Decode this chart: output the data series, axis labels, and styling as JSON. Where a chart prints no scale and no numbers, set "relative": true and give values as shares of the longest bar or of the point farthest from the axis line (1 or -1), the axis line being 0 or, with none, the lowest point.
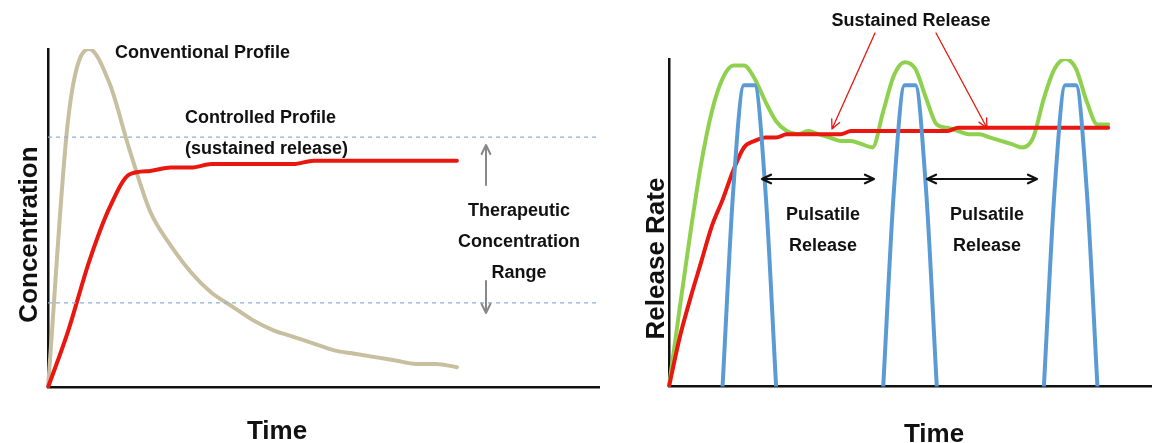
{
  "chart_data": [
    {
      "type": "line",
      "relative": true,
      "xlabel": "Time",
      "ylabel": "Concentration",
      "marker": "none",
      "categories": [
        null,
        null,
        null,
        null,
        null,
        null,
        null,
        null,
        null,
        null,
        null,
        null,
        null,
        null,
        null,
        null,
        null,
        null,
        null,
        null,
        null,
        null,
        null,
        null,
        null,
        null,
        null,
        null
      ],
      "series": [
        {
          "name": "Conventional Profile",
          "color": "#c8bfa0",
          "values": [
            0,
            0.8,
            1,
            0.9,
            0.7,
            0.52,
            0.42,
            0.34,
            0.28,
            0.24,
            0.2,
            0.17,
            0.15,
            0.13,
            0.11,
            0.1,
            0.09,
            0.08,
            0.07,
            0.07,
            0.06,
            null,
            null,
            null,
            null,
            null,
            null,
            null
          ]
        },
        {
          "name": "Controlled Profile (sustained release)",
          "color": "#e8170f",
          "values": [
            0,
            0.17,
            0.37,
            0.53,
            0.63,
            0.64,
            0.65,
            0.65,
            0.66,
            0.66,
            0.66,
            0.66,
            0.66,
            0.67,
            0.67,
            0.67,
            0.67,
            0.67,
            0.67,
            0.67,
            0.67,
            null,
            null,
            null,
            null,
            null,
            null,
            null
          ]
        }
      ],
      "ref_lines": [
        {
          "axis": "y",
          "value": 0.74,
          "color": "#8fb0d8",
          "line_style": "dashed"
        },
        {
          "axis": "y",
          "value": 0.25,
          "color": "#8fb0d8",
          "line_style": "dashed"
        }
      ],
      "annotations": [
        "Therapeutic Concentration Range"
      ]
    },
    {
      "type": "line",
      "relative": true,
      "xlabel": "Time",
      "ylabel": "Release Rate",
      "marker": "none",
      "categories": [
        null,
        null,
        null,
        null,
        null,
        null,
        null,
        null,
        null,
        null,
        null,
        null,
        null,
        null,
        null,
        null,
        null,
        null,
        null,
        null,
        null,
        null,
        null,
        null,
        null,
        null,
        null,
        null,
        null,
        null,
        null,
        null,
        null,
        null,
        null,
        null,
        null,
        null,
        null,
        null,
        null,
        null,
        null,
        null,
        null,
        null
      ],
      "series": [
        {
          "color": "#8fd14f",
          "values": [
            0,
            0.24,
            0.47,
            0.68,
            0.84,
            0.94,
            0.98,
            0.98,
            0.94,
            0.87,
            0.81,
            0.78,
            0.77,
            0.78,
            0.77,
            0.76,
            0.75,
            0.75,
            0.74,
            0.73,
            0.84,
            0.95,
            0.99,
            0.97,
            0.88,
            0.8,
            0.79,
            0.78,
            0.77,
            0.77,
            0.76,
            0.75,
            0.74,
            0.73,
            0.76,
            0.88,
            0.97,
            1,
            0.97,
            0.87,
            0.8,
            0.8,
            null,
            null,
            null,
            null
          ]
        },
        {
          "name": "Sustained Release",
          "color": "#e8170f",
          "values": [
            0,
            0.15,
            0.27,
            0.38,
            0.49,
            0.57,
            0.66,
            0.73,
            0.75,
            0.76,
            0.76,
            0.77,
            0.77,
            0.77,
            0.77,
            0.77,
            0.77,
            0.78,
            0.78,
            0.78,
            0.78,
            0.78,
            0.78,
            0.78,
            0.78,
            0.78,
            0.78,
            0.79,
            0.79,
            0.79,
            0.79,
            0.79,
            0.79,
            0.79,
            0.79,
            0.79,
            0.79,
            0.79,
            0.79,
            0.79,
            0.79,
            0.79,
            null,
            null,
            null,
            null
          ]
        },
        {
          "color": "#5b9bd5",
          "values": [
            null,
            null,
            null,
            null,
            null,
            0,
            0.6,
            0.92,
            0.92,
            0.6,
            0,
            null,
            null,
            null,
            null,
            null,
            null,
            null,
            null,
            null,
            0,
            0.6,
            0.92,
            0.92,
            0.6,
            0,
            null,
            null,
            null,
            null,
            null,
            null,
            null,
            null,
            null,
            0,
            0.6,
            0.92,
            0.92,
            0.6,
            0,
            null,
            null,
            null,
            null,
            null
          ]
        }
      ],
      "annotations": [
        "Pulsatile Release",
        "Pulsatile Release"
      ]
    }
  ]
}
